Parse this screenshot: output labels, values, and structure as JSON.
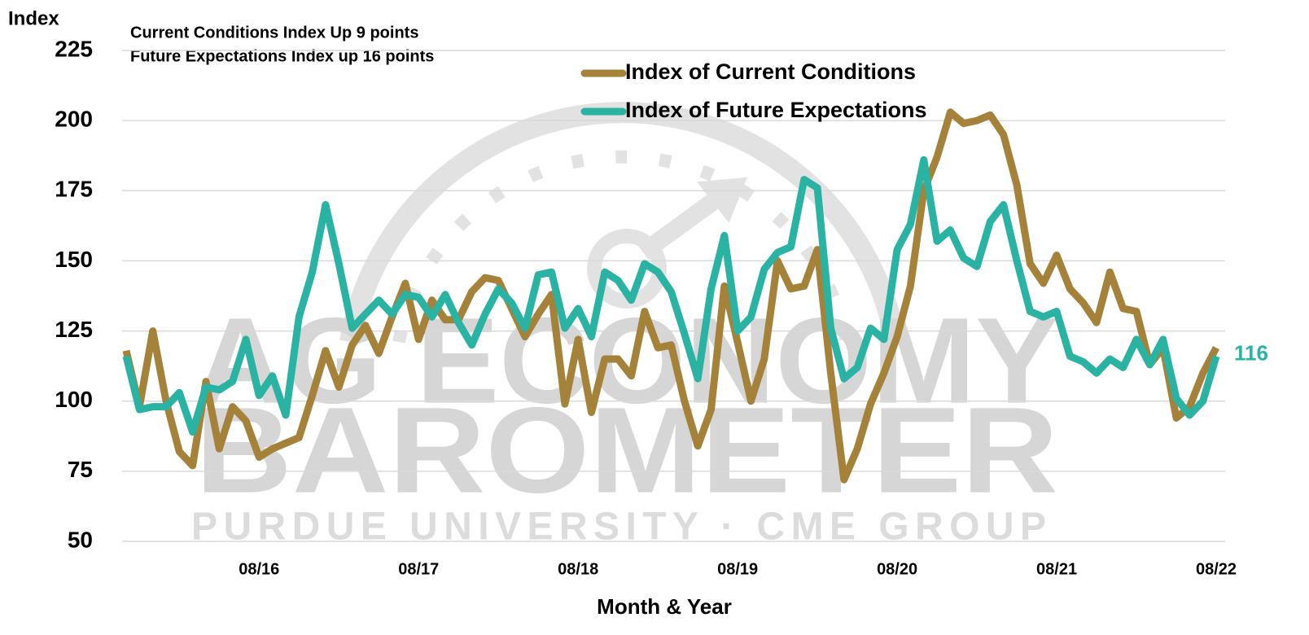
{
  "chart_data": {
    "type": "line",
    "annotations": [
      "Current Conditions Index Up 9 points",
      "Future Expectations Index up 16 points"
    ],
    "ylabel": "Index",
    "xlabel": "Month & Year",
    "watermark": [
      "AG ECONOMY",
      "BAROMETER",
      "PURDUE UNIVERSITY · CME GROUP"
    ],
    "categories": [
      null,
      null,
      null,
      null,
      null,
      null,
      null,
      null,
      null,
      null,
      "08/16",
      null,
      null,
      null,
      null,
      null,
      null,
      null,
      null,
      null,
      null,
      null,
      "08/17",
      null,
      null,
      null,
      null,
      null,
      null,
      null,
      null,
      null,
      null,
      null,
      "08/18",
      null,
      null,
      null,
      null,
      null,
      null,
      null,
      null,
      null,
      null,
      null,
      "08/19",
      null,
      null,
      null,
      null,
      null,
      null,
      null,
      null,
      null,
      null,
      null,
      "08/20",
      null,
      null,
      null,
      null,
      null,
      null,
      null,
      null,
      null,
      null,
      null,
      "08/21",
      null,
      null,
      null,
      null,
      null,
      null,
      null,
      null,
      null,
      null,
      null,
      "08/22"
    ],
    "series": [
      {
        "name": "Index of Current Conditions",
        "color": "#a5823a",
        "values": [
          118,
          98,
          125,
          100,
          82,
          77,
          107,
          83,
          98,
          93,
          80,
          83,
          85,
          87,
          102,
          118,
          105,
          120,
          127,
          117,
          130,
          142,
          122,
          136,
          129,
          129,
          139,
          144,
          143,
          133,
          123,
          131,
          138,
          99,
          122,
          96,
          115,
          115,
          109,
          132,
          119,
          120,
          100,
          84,
          97,
          141,
          121,
          100,
          115,
          150,
          140,
          141,
          154,
          110,
          72,
          83,
          99,
          110,
          123,
          141,
          175,
          187,
          203,
          199,
          200,
          202,
          195,
          177,
          149,
          142,
          152,
          140,
          135,
          128,
          146,
          133,
          132,
          113,
          119,
          94,
          98,
          110,
          119
        ]
      },
      {
        "name": "Index of Future Expectations",
        "color": "#2ab3a3",
        "values": [
          116,
          97,
          98,
          98,
          103,
          89,
          105,
          104,
          107,
          122,
          102,
          109,
          95,
          130,
          146,
          170,
          149,
          126,
          131,
          136,
          131,
          138,
          137,
          130,
          138,
          128,
          120,
          131,
          140,
          135,
          126,
          145,
          146,
          126,
          133,
          123,
          146,
          143,
          136,
          149,
          146,
          139,
          124,
          108,
          140,
          159,
          125,
          130,
          147,
          153,
          155,
          179,
          176,
          126,
          108,
          112,
          126,
          122,
          154,
          163,
          186,
          157,
          161,
          151,
          148,
          164,
          170,
          150,
          132,
          130,
          132,
          116,
          114,
          110,
          115,
          112,
          122,
          113,
          122,
          101,
          95,
          100,
          116
        ]
      }
    ],
    "ylim": [
      50,
      225
    ],
    "yticks": [
      50,
      75,
      100,
      125,
      150,
      175,
      200,
      225
    ],
    "grid": true,
    "legend": "top"
  }
}
